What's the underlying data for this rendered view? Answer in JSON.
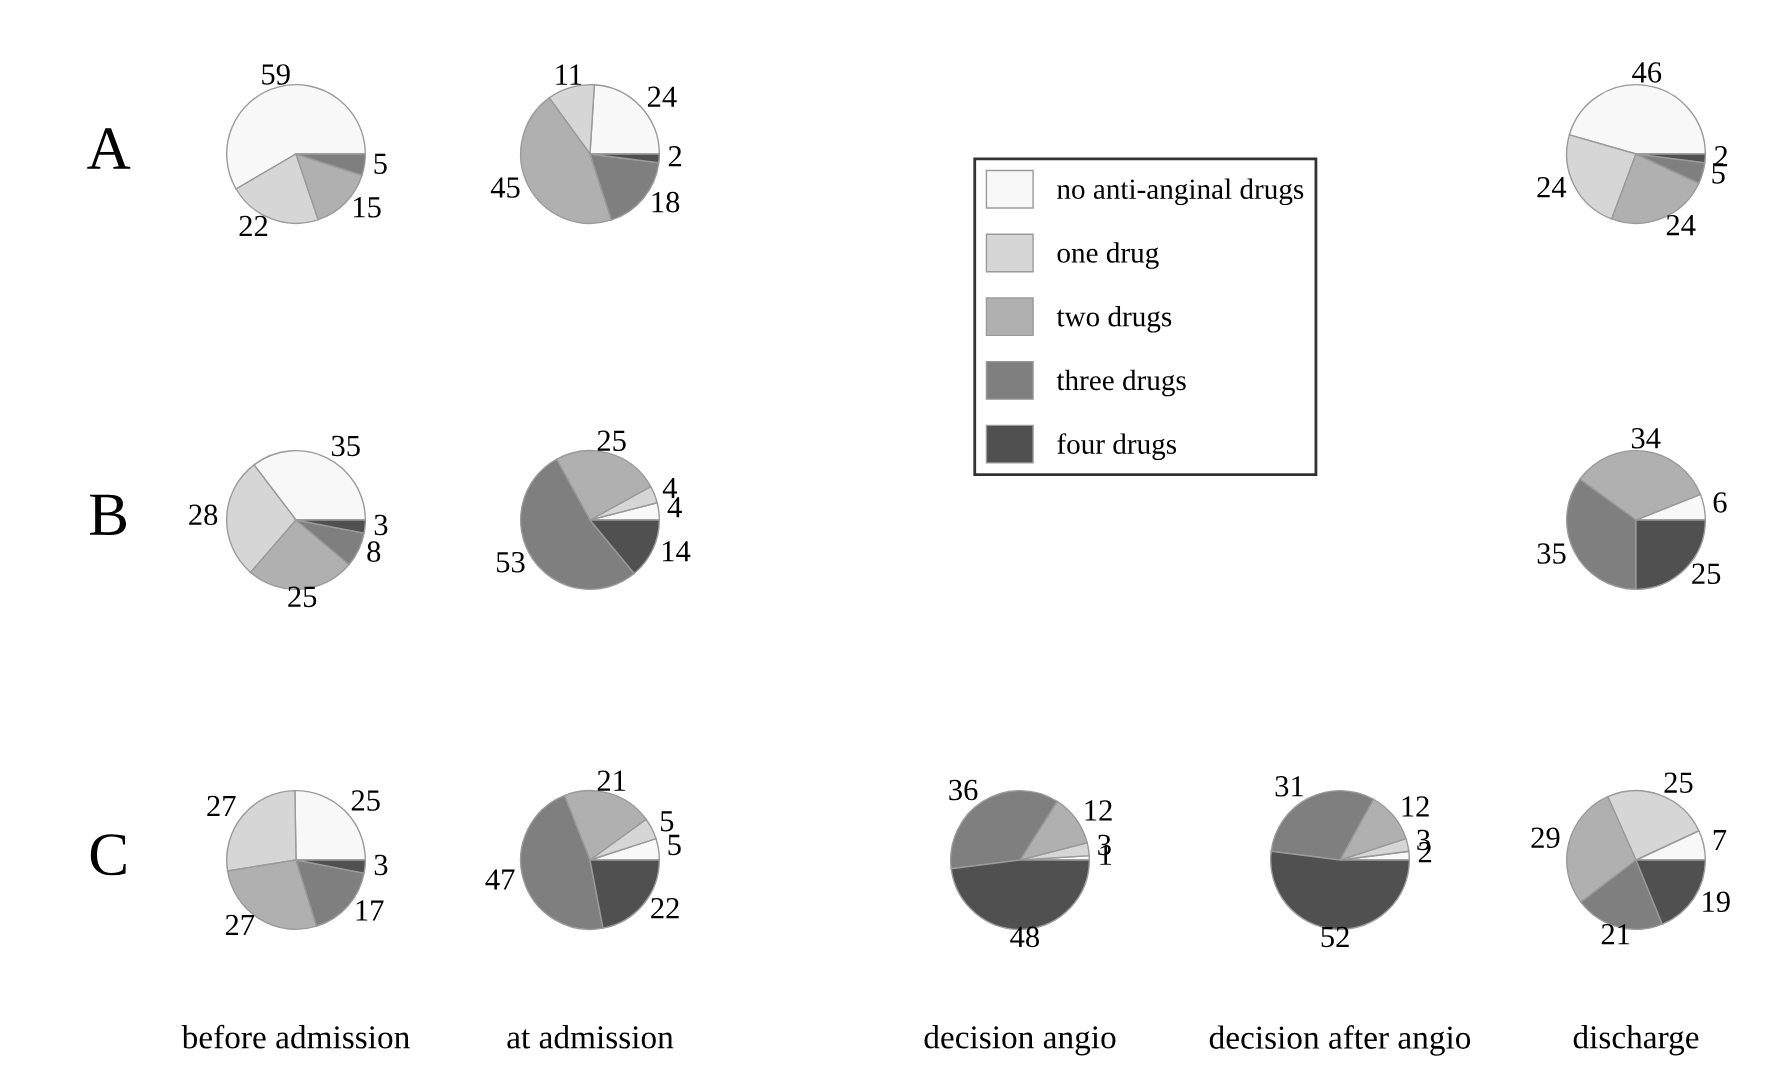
{
  "chart_data": [
    {
      "type": "pie",
      "ylabel": "A",
      "categories": [
        "no anti-anginal drugs",
        "one drug",
        "two drugs",
        "three drugs",
        "four drugs"
      ],
      "values": [
        59,
        22,
        15,
        5,
        null
      ],
      "colors": [
        "#f8f8f8",
        "#d6d6d6",
        "#b0b0b0",
        "#7f7f7f",
        "#505050"
      ],
      "data_labels": true,
      "legend": "right"
    },
    {
      "type": "pie",
      "categories": [
        null,
        null,
        null,
        null,
        null
      ],
      "values": [
        24,
        11,
        45,
        18,
        2
      ],
      "colors": [
        "#f8f8f8",
        "#d6d6d6",
        "#b0b0b0",
        "#7f7f7f",
        "#505050"
      ],
      "data_labels": true
    },
    {
      "type": "pie",
      "categories": [
        null,
        null,
        null,
        null,
        null
      ],
      "values": [
        46,
        24,
        24,
        5,
        2
      ],
      "colors": [
        "#f8f8f8",
        "#d6d6d6",
        "#b0b0b0",
        "#7f7f7f",
        "#505050"
      ],
      "data_labels": true
    },
    {
      "type": "pie",
      "ylabel": "B",
      "categories": [
        null,
        null,
        null,
        null,
        null
      ],
      "values": [
        35,
        28,
        25,
        8,
        3
      ],
      "colors": [
        "#f8f8f8",
        "#d6d6d6",
        "#b0b0b0",
        "#7f7f7f",
        "#505050"
      ],
      "data_labels": true
    },
    {
      "type": "pie",
      "categories": [
        null,
        null,
        null,
        null,
        null
      ],
      "values": [
        4,
        4,
        25,
        53,
        14
      ],
      "colors": [
        "#f8f8f8",
        "#d6d6d6",
        "#b0b0b0",
        "#7f7f7f",
        "#505050"
      ],
      "data_labels": true
    },
    {
      "type": "pie",
      "categories": [
        null,
        null,
        null,
        null,
        null
      ],
      "values": [
        6,
        null,
        34,
        35,
        25
      ],
      "colors": [
        "#f8f8f8",
        "#d6d6d6",
        "#b0b0b0",
        "#7f7f7f",
        "#505050"
      ],
      "data_labels": true
    },
    {
      "type": "pie",
      "ylabel": "C",
      "xlabel": "before admission",
      "categories": [
        null,
        null,
        null,
        null,
        null
      ],
      "values": [
        25,
        27,
        27,
        17,
        3
      ],
      "colors": [
        "#f8f8f8",
        "#d6d6d6",
        "#b0b0b0",
        "#7f7f7f",
        "#505050"
      ],
      "data_labels": true
    },
    {
      "type": "pie",
      "xlabel": "at admission",
      "categories": [
        null,
        null,
        null,
        null,
        null
      ],
      "values": [
        5,
        5,
        21,
        47,
        22
      ],
      "colors": [
        "#f8f8f8",
        "#d6d6d6",
        "#b0b0b0",
        "#7f7f7f",
        "#505050"
      ],
      "data_labels": true
    },
    {
      "type": "pie",
      "xlabel": "decision angio",
      "categories": [
        null,
        null,
        null,
        null,
        null
      ],
      "values": [
        1,
        3,
        12,
        36,
        48
      ],
      "colors": [
        "#f8f8f8",
        "#d6d6d6",
        "#b0b0b0",
        "#7f7f7f",
        "#505050"
      ],
      "data_labels": true
    },
    {
      "type": "pie",
      "xlabel": "decision after angio",
      "categories": [
        null,
        null,
        null,
        null,
        null
      ],
      "values": [
        2,
        3,
        12,
        31,
        52
      ],
      "colors": [
        "#f8f8f8",
        "#d6d6d6",
        "#b0b0b0",
        "#7f7f7f",
        "#505050"
      ],
      "data_labels": true
    },
    {
      "type": "pie",
      "xlabel": "discharge",
      "categories": [
        null,
        null,
        null,
        null,
        null
      ],
      "values": [
        7,
        25,
        29,
        21,
        19
      ],
      "colors": [
        "#f8f8f8",
        "#d6d6d6",
        "#b0b0b0",
        "#7f7f7f",
        "#505050"
      ],
      "data_labels": true
    }
  ]
}
